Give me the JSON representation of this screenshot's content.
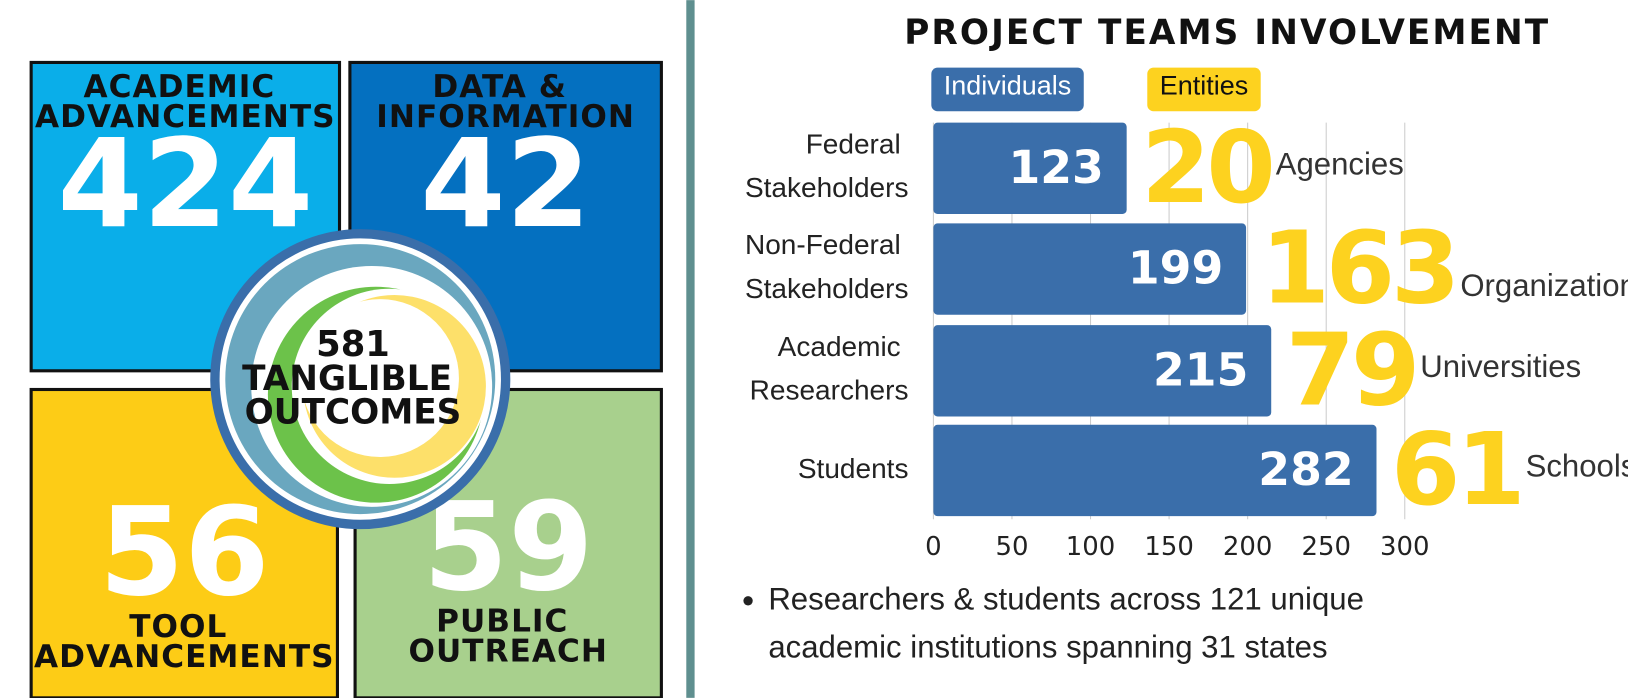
{
  "outcomes": {
    "quadrants": [
      {
        "label": "ACADEMIC ADVANCEMENTS",
        "value": 424,
        "color": "#0aaee9"
      },
      {
        "label": "DATA & INFORMATION",
        "value": 42,
        "color": "#0470c0"
      },
      {
        "label": "TOOL ADVANCEMENTS",
        "value": 56,
        "color": "#fdcc16"
      },
      {
        "label": "PUBLIC OUTREACH",
        "value": 59,
        "color": "#a8d08d"
      }
    ],
    "total": {
      "value": 581,
      "label": "TANGLIBLE OUTCOMES"
    }
  },
  "chart_data": {
    "type": "bar",
    "orientation": "horizontal",
    "title": "PROJECT TEAMS INVOLVEMENT",
    "categories": [
      "Federal Stakeholders",
      "Non-Federal Stakeholders",
      "Academic Researchers",
      "Students"
    ],
    "series": [
      {
        "name": "Individuals",
        "color": "#3a6eaa",
        "values": [
          123,
          199,
          215,
          282
        ]
      },
      {
        "name": "Entities",
        "color": "#fdd21f",
        "values": [
          20,
          163,
          79,
          61
        ],
        "labels": [
          "Agencies",
          "Organizations",
          "Universities",
          "Schools"
        ]
      }
    ],
    "xlim": [
      0,
      300
    ],
    "xticks": [
      0,
      50,
      100,
      150,
      200,
      250,
      300
    ],
    "grid": true
  },
  "note": "Researchers & students across 121 unique academic institutions spanning 31 states"
}
